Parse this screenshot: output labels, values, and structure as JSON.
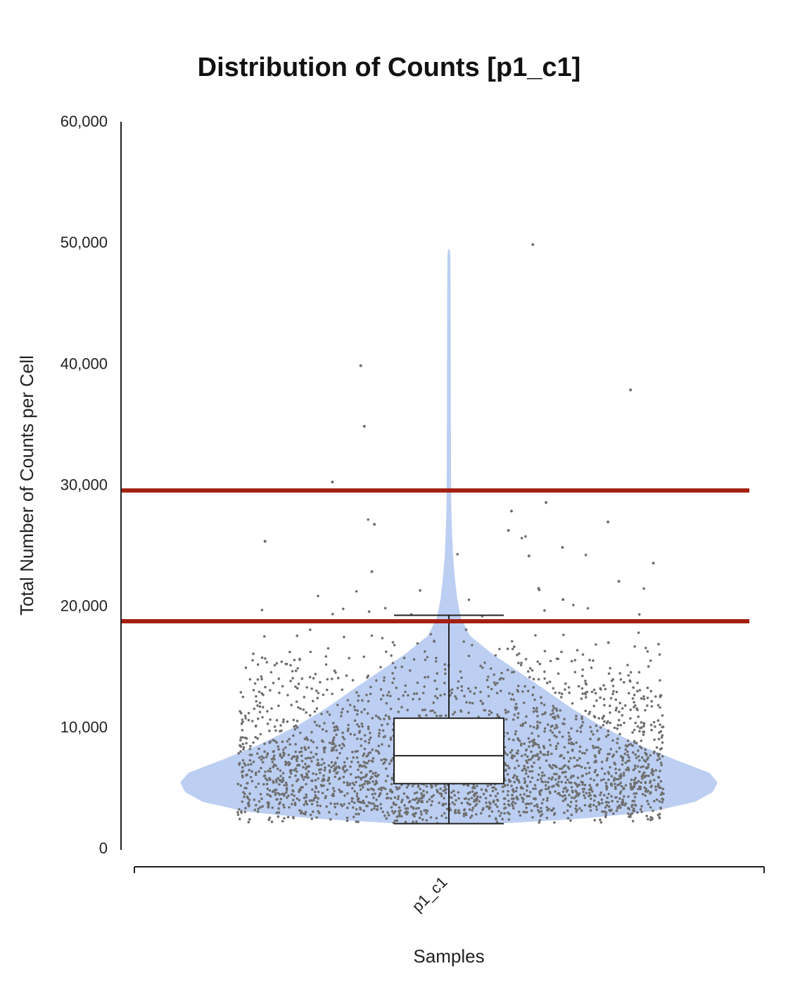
{
  "chart_data": {
    "type": "violin",
    "title": "Distribution of Counts [p1_c1]",
    "xlabel": "Samples",
    "ylabel": "Total Number of Counts per Cell",
    "categories": [
      "p1_c1"
    ],
    "ylim": [
      0,
      60000
    ],
    "yticks": [
      0,
      10000,
      20000,
      30000,
      40000,
      50000,
      60000
    ],
    "ytick_labels": [
      "0",
      "10,000",
      "20,000",
      "30,000",
      "40,000",
      "50,000",
      "60,000"
    ],
    "grid": false,
    "legend": "none",
    "colors": {
      "violin": "#bccff2",
      "points": "#6f6f6f",
      "threshold": "#a31f10",
      "box_fill": "#ffffff",
      "box_stroke": "#222222"
    },
    "box": {
      "whisker_low": 2000,
      "q1": 5300,
      "median": 7600,
      "q3": 10700,
      "whisker_high": 19200
    },
    "violin": {
      "min": 2000,
      "max": 49500,
      "mode": 5500
    },
    "thresholds": [
      18700,
      29500
    ],
    "outliers": [
      {
        "y": 49800
      },
      {
        "y": 39800
      },
      {
        "y": 37800
      },
      {
        "y": 34800
      },
      {
        "y": 30200
      },
      {
        "y": 28500
      },
      {
        "y": 27800
      },
      {
        "y": 26900
      },
      {
        "y": 26700
      },
      {
        "y": 26200
      },
      {
        "y": 25300
      },
      {
        "y": 24800
      },
      {
        "y": 24100
      },
      {
        "y": 23500
      },
      {
        "y": 22800
      },
      {
        "y": 22000
      },
      {
        "y": 21300
      },
      {
        "y": 20500
      }
    ]
  }
}
